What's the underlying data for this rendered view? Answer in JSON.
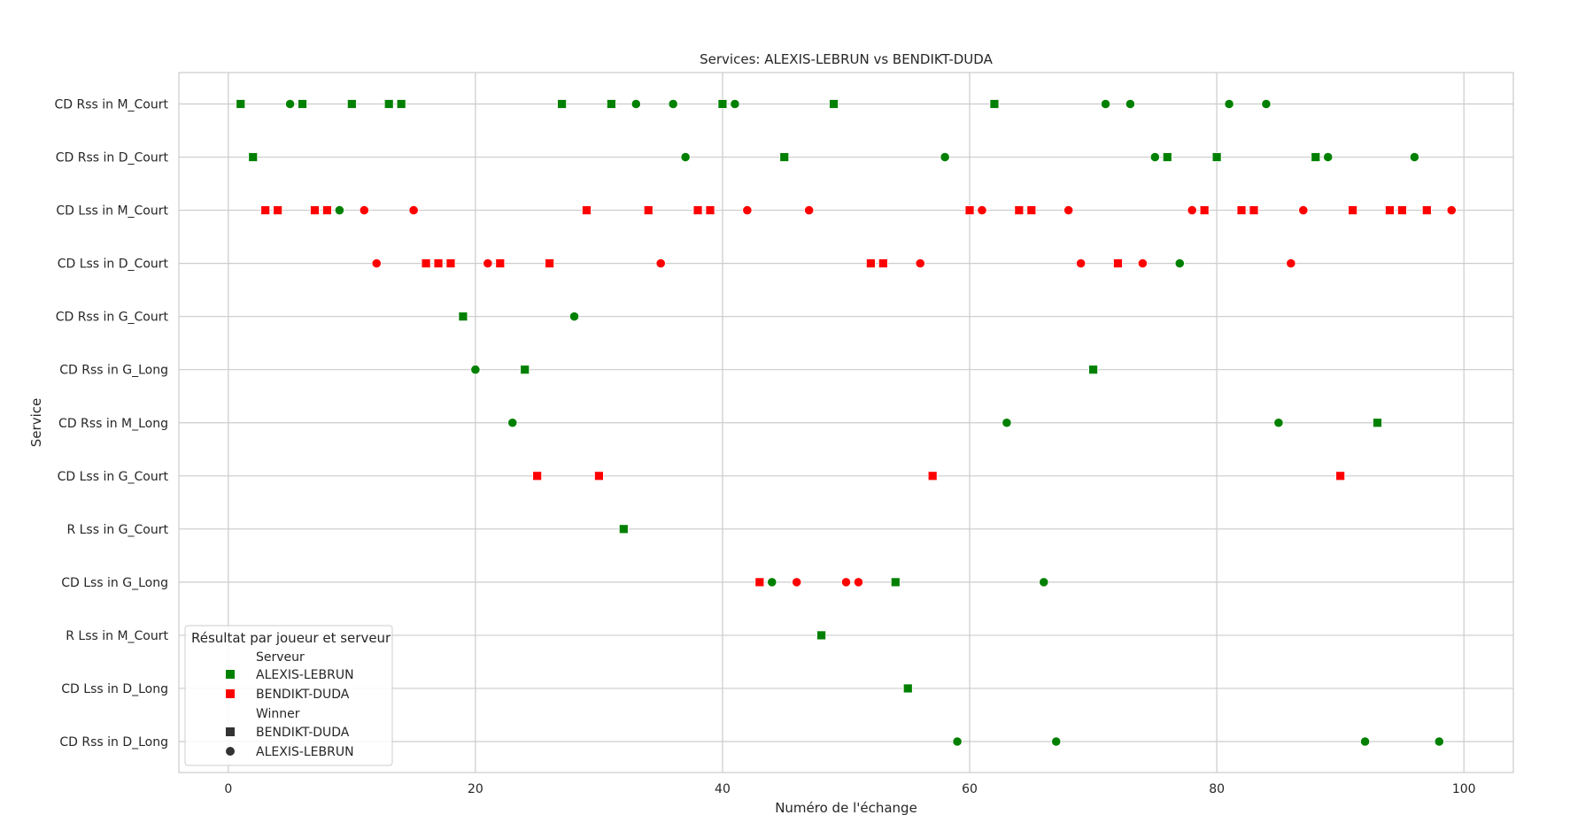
{
  "chart_data": {
    "type": "scatter",
    "title": "Services: ALEXIS-LEBRUN vs BENDIKT-DUDA",
    "xlabel": "Numéro de l'échange",
    "ylabel": "Service",
    "xlim": [
      -4,
      104
    ],
    "xticks": [
      0,
      20,
      40,
      60,
      80,
      100
    ],
    "grid": true,
    "legend_position": "lower-left",
    "categories": [
      "CD Rss in M_Court",
      "CD Rss in D_Court",
      "CD Lss in M_Court",
      "CD Lss in D_Court",
      "CD Rss in G_Court",
      "CD Rss in G_Long",
      "CD Rss in M_Long",
      "CD Lss in G_Court",
      "R Lss in G_Court",
      "CD Lss in G_Long",
      "R Lss in M_Court",
      "CD Lss in D_Long",
      "CD Rss in D_Long"
    ],
    "colors": {
      "ALEXIS-LEBRUN": "#008000",
      "BENDIKT-DUDA": "#ff0000"
    },
    "markers": {
      "BENDIKT-DUDA": "square",
      "ALEXIS-LEBRUN": "circle"
    },
    "legend": {
      "title": "Résultat par joueur et serveur",
      "hue_title": "Serveur",
      "hue_entries": [
        "ALEXIS-LEBRUN",
        "BENDIKT-DUDA"
      ],
      "style_title": "Winner",
      "style_entries": [
        "BENDIKT-DUDA",
        "ALEXIS-LEBRUN"
      ]
    },
    "points": [
      {
        "x": 1,
        "cat": "CD Rss in M_Court",
        "server": "ALEXIS-LEBRUN",
        "winner": "BENDIKT-DUDA"
      },
      {
        "x": 2,
        "cat": "CD Rss in D_Court",
        "server": "ALEXIS-LEBRUN",
        "winner": "BENDIKT-DUDA"
      },
      {
        "x": 3,
        "cat": "CD Lss in M_Court",
        "server": "BENDIKT-DUDA",
        "winner": "BENDIKT-DUDA"
      },
      {
        "x": 4,
        "cat": "CD Lss in M_Court",
        "server": "BENDIKT-DUDA",
        "winner": "BENDIKT-DUDA"
      },
      {
        "x": 5,
        "cat": "CD Rss in M_Court",
        "server": "ALEXIS-LEBRUN",
        "winner": "ALEXIS-LEBRUN"
      },
      {
        "x": 6,
        "cat": "CD Rss in M_Court",
        "server": "ALEXIS-LEBRUN",
        "winner": "BENDIKT-DUDA"
      },
      {
        "x": 7,
        "cat": "CD Lss in M_Court",
        "server": "BENDIKT-DUDA",
        "winner": "BENDIKT-DUDA"
      },
      {
        "x": 8,
        "cat": "CD Lss in M_Court",
        "server": "BENDIKT-DUDA",
        "winner": "BENDIKT-DUDA"
      },
      {
        "x": 9,
        "cat": "CD Lss in M_Court",
        "server": "ALEXIS-LEBRUN",
        "winner": "ALEXIS-LEBRUN"
      },
      {
        "x": 10,
        "cat": "CD Rss in M_Court",
        "server": "ALEXIS-LEBRUN",
        "winner": "BENDIKT-DUDA"
      },
      {
        "x": 11,
        "cat": "CD Lss in M_Court",
        "server": "BENDIKT-DUDA",
        "winner": "ALEXIS-LEBRUN"
      },
      {
        "x": 12,
        "cat": "CD Lss in D_Court",
        "server": "BENDIKT-DUDA",
        "winner": "ALEXIS-LEBRUN"
      },
      {
        "x": 13,
        "cat": "CD Rss in M_Court",
        "server": "ALEXIS-LEBRUN",
        "winner": "BENDIKT-DUDA"
      },
      {
        "x": 14,
        "cat": "CD Rss in M_Court",
        "server": "ALEXIS-LEBRUN",
        "winner": "BENDIKT-DUDA"
      },
      {
        "x": 15,
        "cat": "CD Lss in M_Court",
        "server": "BENDIKT-DUDA",
        "winner": "ALEXIS-LEBRUN"
      },
      {
        "x": 16,
        "cat": "CD Lss in D_Court",
        "server": "BENDIKT-DUDA",
        "winner": "BENDIKT-DUDA"
      },
      {
        "x": 17,
        "cat": "CD Lss in D_Court",
        "server": "BENDIKT-DUDA",
        "winner": "BENDIKT-DUDA"
      },
      {
        "x": 18,
        "cat": "CD Lss in D_Court",
        "server": "BENDIKT-DUDA",
        "winner": "BENDIKT-DUDA"
      },
      {
        "x": 19,
        "cat": "CD Rss in G_Court",
        "server": "ALEXIS-LEBRUN",
        "winner": "BENDIKT-DUDA"
      },
      {
        "x": 20,
        "cat": "CD Rss in G_Long",
        "server": "ALEXIS-LEBRUN",
        "winner": "ALEXIS-LEBRUN"
      },
      {
        "x": 21,
        "cat": "CD Lss in D_Court",
        "server": "BENDIKT-DUDA",
        "winner": "ALEXIS-LEBRUN"
      },
      {
        "x": 22,
        "cat": "CD Lss in D_Court",
        "server": "BENDIKT-DUDA",
        "winner": "BENDIKT-DUDA"
      },
      {
        "x": 23,
        "cat": "CD Rss in M_Long",
        "server": "ALEXIS-LEBRUN",
        "winner": "ALEXIS-LEBRUN"
      },
      {
        "x": 24,
        "cat": "CD Rss in G_Long",
        "server": "ALEXIS-LEBRUN",
        "winner": "BENDIKT-DUDA"
      },
      {
        "x": 25,
        "cat": "CD Lss in G_Court",
        "server": "BENDIKT-DUDA",
        "winner": "BENDIKT-DUDA"
      },
      {
        "x": 26,
        "cat": "CD Lss in D_Court",
        "server": "BENDIKT-DUDA",
        "winner": "BENDIKT-DUDA"
      },
      {
        "x": 27,
        "cat": "CD Rss in M_Court",
        "server": "ALEXIS-LEBRUN",
        "winner": "BENDIKT-DUDA"
      },
      {
        "x": 28,
        "cat": "CD Rss in G_Court",
        "server": "ALEXIS-LEBRUN",
        "winner": "ALEXIS-LEBRUN"
      },
      {
        "x": 29,
        "cat": "CD Lss in M_Court",
        "server": "BENDIKT-DUDA",
        "winner": "BENDIKT-DUDA"
      },
      {
        "x": 30,
        "cat": "CD Lss in G_Court",
        "server": "BENDIKT-DUDA",
        "winner": "BENDIKT-DUDA"
      },
      {
        "x": 31,
        "cat": "CD Rss in M_Court",
        "server": "ALEXIS-LEBRUN",
        "winner": "BENDIKT-DUDA"
      },
      {
        "x": 32,
        "cat": "R Lss in G_Court",
        "server": "ALEXIS-LEBRUN",
        "winner": "BENDIKT-DUDA"
      },
      {
        "x": 33,
        "cat": "CD Rss in M_Court",
        "server": "ALEXIS-LEBRUN",
        "winner": "ALEXIS-LEBRUN"
      },
      {
        "x": 34,
        "cat": "CD Lss in M_Court",
        "server": "BENDIKT-DUDA",
        "winner": "BENDIKT-DUDA"
      },
      {
        "x": 35,
        "cat": "CD Lss in D_Court",
        "server": "BENDIKT-DUDA",
        "winner": "ALEXIS-LEBRUN"
      },
      {
        "x": 36,
        "cat": "CD Rss in M_Court",
        "server": "ALEXIS-LEBRUN",
        "winner": "ALEXIS-LEBRUN"
      },
      {
        "x": 37,
        "cat": "CD Rss in D_Court",
        "server": "ALEXIS-LEBRUN",
        "winner": "ALEXIS-LEBRUN"
      },
      {
        "x": 38,
        "cat": "CD Lss in M_Court",
        "server": "BENDIKT-DUDA",
        "winner": "BENDIKT-DUDA"
      },
      {
        "x": 39,
        "cat": "CD Lss in M_Court",
        "server": "BENDIKT-DUDA",
        "winner": "BENDIKT-DUDA"
      },
      {
        "x": 40,
        "cat": "CD Rss in M_Court",
        "server": "ALEXIS-LEBRUN",
        "winner": "BENDIKT-DUDA"
      },
      {
        "x": 41,
        "cat": "CD Rss in M_Court",
        "server": "ALEXIS-LEBRUN",
        "winner": "ALEXIS-LEBRUN"
      },
      {
        "x": 42,
        "cat": "CD Lss in M_Court",
        "server": "BENDIKT-DUDA",
        "winner": "ALEXIS-LEBRUN"
      },
      {
        "x": 43,
        "cat": "CD Lss in G_Long",
        "server": "BENDIKT-DUDA",
        "winner": "BENDIKT-DUDA"
      },
      {
        "x": 44,
        "cat": "CD Lss in G_Long",
        "server": "ALEXIS-LEBRUN",
        "winner": "ALEXIS-LEBRUN"
      },
      {
        "x": 45,
        "cat": "CD Rss in D_Court",
        "server": "ALEXIS-LEBRUN",
        "winner": "BENDIKT-DUDA"
      },
      {
        "x": 46,
        "cat": "CD Lss in G_Long",
        "server": "BENDIKT-DUDA",
        "winner": "ALEXIS-LEBRUN"
      },
      {
        "x": 47,
        "cat": "CD Lss in M_Court",
        "server": "BENDIKT-DUDA",
        "winner": "ALEXIS-LEBRUN"
      },
      {
        "x": 48,
        "cat": "R Lss in M_Court",
        "server": "ALEXIS-LEBRUN",
        "winner": "BENDIKT-DUDA"
      },
      {
        "x": 49,
        "cat": "CD Rss in M_Court",
        "server": "ALEXIS-LEBRUN",
        "winner": "BENDIKT-DUDA"
      },
      {
        "x": 50,
        "cat": "CD Lss in G_Long",
        "server": "BENDIKT-DUDA",
        "winner": "ALEXIS-LEBRUN"
      },
      {
        "x": 51,
        "cat": "CD Lss in G_Long",
        "server": "BENDIKT-DUDA",
        "winner": "ALEXIS-LEBRUN"
      },
      {
        "x": 52,
        "cat": "CD Lss in D_Court",
        "server": "BENDIKT-DUDA",
        "winner": "BENDIKT-DUDA"
      },
      {
        "x": 53,
        "cat": "CD Lss in D_Court",
        "server": "BENDIKT-DUDA",
        "winner": "BENDIKT-DUDA"
      },
      {
        "x": 54,
        "cat": "CD Lss in G_Long",
        "server": "ALEXIS-LEBRUN",
        "winner": "BENDIKT-DUDA"
      },
      {
        "x": 55,
        "cat": "CD Lss in D_Long",
        "server": "ALEXIS-LEBRUN",
        "winner": "BENDIKT-DUDA"
      },
      {
        "x": 56,
        "cat": "CD Lss in D_Court",
        "server": "BENDIKT-DUDA",
        "winner": "ALEXIS-LEBRUN"
      },
      {
        "x": 57,
        "cat": "CD Lss in G_Court",
        "server": "BENDIKT-DUDA",
        "winner": "BENDIKT-DUDA"
      },
      {
        "x": 58,
        "cat": "CD Rss in D_Court",
        "server": "ALEXIS-LEBRUN",
        "winner": "ALEXIS-LEBRUN"
      },
      {
        "x": 59,
        "cat": "CD Rss in D_Long",
        "server": "ALEXIS-LEBRUN",
        "winner": "ALEXIS-LEBRUN"
      },
      {
        "x": 60,
        "cat": "CD Lss in M_Court",
        "server": "BENDIKT-DUDA",
        "winner": "BENDIKT-DUDA"
      },
      {
        "x": 61,
        "cat": "CD Lss in M_Court",
        "server": "BENDIKT-DUDA",
        "winner": "ALEXIS-LEBRUN"
      },
      {
        "x": 62,
        "cat": "CD Rss in M_Court",
        "server": "ALEXIS-LEBRUN",
        "winner": "BENDIKT-DUDA"
      },
      {
        "x": 63,
        "cat": "CD Rss in M_Long",
        "server": "ALEXIS-LEBRUN",
        "winner": "ALEXIS-LEBRUN"
      },
      {
        "x": 64,
        "cat": "CD Lss in M_Court",
        "server": "BENDIKT-DUDA",
        "winner": "BENDIKT-DUDA"
      },
      {
        "x": 65,
        "cat": "CD Lss in M_Court",
        "server": "BENDIKT-DUDA",
        "winner": "BENDIKT-DUDA"
      },
      {
        "x": 66,
        "cat": "CD Lss in G_Long",
        "server": "ALEXIS-LEBRUN",
        "winner": "ALEXIS-LEBRUN"
      },
      {
        "x": 67,
        "cat": "CD Rss in D_Long",
        "server": "ALEXIS-LEBRUN",
        "winner": "ALEXIS-LEBRUN"
      },
      {
        "x": 68,
        "cat": "CD Lss in M_Court",
        "server": "BENDIKT-DUDA",
        "winner": "ALEXIS-LEBRUN"
      },
      {
        "x": 69,
        "cat": "CD Lss in D_Court",
        "server": "BENDIKT-DUDA",
        "winner": "ALEXIS-LEBRUN"
      },
      {
        "x": 70,
        "cat": "CD Rss in G_Long",
        "server": "ALEXIS-LEBRUN",
        "winner": "BENDIKT-DUDA"
      },
      {
        "x": 71,
        "cat": "CD Rss in M_Court",
        "server": "ALEXIS-LEBRUN",
        "winner": "ALEXIS-LEBRUN"
      },
      {
        "x": 72,
        "cat": "CD Lss in D_Court",
        "server": "BENDIKT-DUDA",
        "winner": "BENDIKT-DUDA"
      },
      {
        "x": 73,
        "cat": "CD Rss in M_Court",
        "server": "ALEXIS-LEBRUN",
        "winner": "ALEXIS-LEBRUN"
      },
      {
        "x": 74,
        "cat": "CD Lss in D_Court",
        "server": "BENDIKT-DUDA",
        "winner": "ALEXIS-LEBRUN"
      },
      {
        "x": 75,
        "cat": "CD Rss in D_Court",
        "server": "ALEXIS-LEBRUN",
        "winner": "ALEXIS-LEBRUN"
      },
      {
        "x": 76,
        "cat": "CD Rss in D_Court",
        "server": "ALEXIS-LEBRUN",
        "winner": "BENDIKT-DUDA"
      },
      {
        "x": 77,
        "cat": "CD Lss in D_Court",
        "server": "ALEXIS-LEBRUN",
        "winner": "ALEXIS-LEBRUN"
      },
      {
        "x": 78,
        "cat": "CD Lss in M_Court",
        "server": "BENDIKT-DUDA",
        "winner": "ALEXIS-LEBRUN"
      },
      {
        "x": 79,
        "cat": "CD Lss in M_Court",
        "server": "BENDIKT-DUDA",
        "winner": "BENDIKT-DUDA"
      },
      {
        "x": 80,
        "cat": "CD Rss in D_Court",
        "server": "ALEXIS-LEBRUN",
        "winner": "BENDIKT-DUDA"
      },
      {
        "x": 81,
        "cat": "CD Rss in M_Court",
        "server": "ALEXIS-LEBRUN",
        "winner": "ALEXIS-LEBRUN"
      },
      {
        "x": 82,
        "cat": "CD Lss in M_Court",
        "server": "BENDIKT-DUDA",
        "winner": "BENDIKT-DUDA"
      },
      {
        "x": 83,
        "cat": "CD Lss in M_Court",
        "server": "BENDIKT-DUDA",
        "winner": "BENDIKT-DUDA"
      },
      {
        "x": 84,
        "cat": "CD Rss in M_Court",
        "server": "ALEXIS-LEBRUN",
        "winner": "ALEXIS-LEBRUN"
      },
      {
        "x": 85,
        "cat": "CD Rss in M_Long",
        "server": "ALEXIS-LEBRUN",
        "winner": "ALEXIS-LEBRUN"
      },
      {
        "x": 86,
        "cat": "CD Lss in D_Court",
        "server": "BENDIKT-DUDA",
        "winner": "ALEXIS-LEBRUN"
      },
      {
        "x": 87,
        "cat": "CD Lss in M_Court",
        "server": "BENDIKT-DUDA",
        "winner": "ALEXIS-LEBRUN"
      },
      {
        "x": 88,
        "cat": "CD Rss in D_Court",
        "server": "ALEXIS-LEBRUN",
        "winner": "BENDIKT-DUDA"
      },
      {
        "x": 89,
        "cat": "CD Rss in D_Court",
        "server": "ALEXIS-LEBRUN",
        "winner": "ALEXIS-LEBRUN"
      },
      {
        "x": 90,
        "cat": "CD Lss in G_Court",
        "server": "BENDIKT-DUDA",
        "winner": "BENDIKT-DUDA"
      },
      {
        "x": 91,
        "cat": "CD Lss in M_Court",
        "server": "BENDIKT-DUDA",
        "winner": "BENDIKT-DUDA"
      },
      {
        "x": 92,
        "cat": "CD Rss in D_Long",
        "server": "ALEXIS-LEBRUN",
        "winner": "ALEXIS-LEBRUN"
      },
      {
        "x": 93,
        "cat": "CD Rss in M_Long",
        "server": "ALEXIS-LEBRUN",
        "winner": "BENDIKT-DUDA"
      },
      {
        "x": 94,
        "cat": "CD Lss in M_Court",
        "server": "BENDIKT-DUDA",
        "winner": "BENDIKT-DUDA"
      },
      {
        "x": 95,
        "cat": "CD Lss in M_Court",
        "server": "BENDIKT-DUDA",
        "winner": "BENDIKT-DUDA"
      },
      {
        "x": 96,
        "cat": "CD Rss in D_Court",
        "server": "ALEXIS-LEBRUN",
        "winner": "ALEXIS-LEBRUN"
      },
      {
        "x": 97,
        "cat": "CD Lss in M_Court",
        "server": "BENDIKT-DUDA",
        "winner": "BENDIKT-DUDA"
      },
      {
        "x": 98,
        "cat": "CD Rss in D_Long",
        "server": "ALEXIS-LEBRUN",
        "winner": "ALEXIS-LEBRUN"
      },
      {
        "x": 99,
        "cat": "CD Lss in M_Court",
        "server": "BENDIKT-DUDA",
        "winner": "ALEXIS-LEBRUN"
      }
    ]
  }
}
